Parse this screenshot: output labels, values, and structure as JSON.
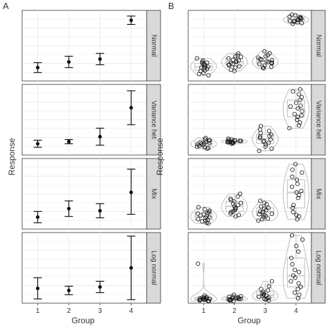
{
  "panel_labels": [
    "A",
    "B"
  ],
  "y_label": "Response",
  "x_label": "Group",
  "x_ticks": [
    "1",
    "2",
    "3",
    "4"
  ],
  "facets": [
    "Normal",
    "Variance het",
    "Mix",
    "Log normal"
  ],
  "colors": {
    "strip_bg": "#d9d9d9",
    "strip_border": "#333333",
    "grid": "#ebebeb",
    "point": "#111111",
    "box": "#bdbdbd"
  },
  "chart_data": [
    {
      "type": "errorbar",
      "panel": "A",
      "facets": [
        {
          "name": "Normal",
          "ylim": [
            0,
            10
          ],
          "mean": [
            1.9,
            2.7,
            3.1,
            8.6
          ],
          "lower": [
            1.2,
            1.9,
            2.3,
            8.0
          ],
          "upper": [
            2.6,
            3.5,
            3.9,
            9.2
          ]
        },
        {
          "name": "Variance het",
          "ylim": [
            0,
            10
          ],
          "mean": [
            1.6,
            1.9,
            2.6,
            6.7
          ],
          "lower": [
            1.1,
            1.6,
            1.4,
            4.3
          ],
          "upper": [
            2.1,
            2.2,
            3.8,
            9.1
          ]
        },
        {
          "name": "Mix",
          "ylim": [
            0,
            10
          ],
          "mean": [
            1.7,
            2.9,
            2.6,
            5.2
          ],
          "lower": [
            0.9,
            1.8,
            1.6,
            2.1
          ],
          "upper": [
            2.5,
            4.0,
            3.6,
            8.5
          ]
        },
        {
          "name": "Log normal",
          "ylim": [
            0,
            10
          ],
          "mean": [
            2.1,
            1.8,
            2.3,
            5.0
          ],
          "lower": [
            0.6,
            1.2,
            1.5,
            0.5
          ],
          "upper": [
            3.6,
            2.4,
            3.1,
            9.5
          ]
        }
      ]
    },
    {
      "type": "violin-box-jitter",
      "panel": "B",
      "facets": [
        {
          "name": "Normal",
          "ylim": [
            0,
            10
          ],
          "points": [
            [
              1.0,
              1.7,
              2.3,
              2.9,
              1.4,
              2.0,
              2.6,
              1.1,
              1.8,
              2.4,
              3.2,
              1.5,
              2.1,
              2.7,
              0.8,
              1.9,
              2.5
            ],
            [
              1.9,
              2.4,
              3.0,
              3.5,
              2.2,
              2.8,
              3.4,
              1.6,
              2.6,
              3.9,
              2.1,
              2.7,
              3.2,
              1.4,
              2.9,
              3.6,
              2.3
            ],
            [
              2.0,
              2.6,
              3.1,
              3.7,
              2.4,
              2.9,
              3.5,
              1.8,
              2.8,
              4.2,
              2.2,
              3.3,
              2.7,
              1.9,
              3.0,
              3.9,
              2.5
            ],
            [
              8.3,
              8.7,
              9.0,
              8.5,
              8.9,
              9.3,
              8.1,
              8.6,
              9.1,
              8.4,
              8.8,
              9.4,
              8.2,
              8.7,
              9.0,
              8.5
            ]
          ]
        },
        {
          "name": "Variance het",
          "ylim": [
            0,
            10
          ],
          "points": [
            [
              1.0,
              1.4,
              1.8,
              2.2,
              1.2,
              1.6,
              2.0,
              1.3,
              1.7,
              2.4,
              0.9,
              1.5,
              1.9,
              2.1,
              1.1,
              1.6
            ],
            [
              1.6,
              1.9,
              2.1,
              1.8,
              2.0,
              1.7,
              2.2,
              1.9,
              1.8,
              2.0,
              2.1,
              1.7,
              1.9,
              2.3,
              1.8,
              2.0
            ],
            [
              0.6,
              1.2,
              1.9,
              2.6,
              3.4,
              4.1,
              1.5,
              2.2,
              2.9,
              3.6,
              0.9,
              1.7,
              2.4,
              3.1,
              2.0,
              2.7
            ],
            [
              3.8,
              4.6,
              5.4,
              6.2,
              7.0,
              7.8,
              8.6,
              9.3,
              5.0,
              5.8,
              6.6,
              7.4,
              8.2,
              4.2,
              6.9,
              9.0,
              5.6
            ]
          ]
        },
        {
          "name": "Mix",
          "ylim": [
            0,
            10
          ],
          "points": [
            [
              0.8,
              1.3,
              1.8,
              2.3,
              2.8,
              1.1,
              1.6,
              2.1,
              2.6,
              0.9,
              1.4,
              1.9,
              2.4,
              1.2,
              1.7,
              2.2,
              3.1
            ],
            [
              1.8,
              2.5,
              3.2,
              3.9,
              4.6,
              2.2,
              2.9,
              3.6,
              4.3,
              2.0,
              2.7,
              3.4,
              4.1,
              2.4,
              3.0,
              3.7,
              5.0
            ],
            [
              1.2,
              1.7,
              2.2,
              2.7,
              3.2,
              3.7,
              1.5,
              2.0,
              2.5,
              3.0,
              3.5,
              1.4,
              1.9,
              2.4,
              2.9,
              4.0,
              2.1
            ],
            [
              1.4,
              2.4,
              3.4,
              4.4,
              5.4,
              6.4,
              7.4,
              8.4,
              9.2,
              2.0,
              3.0,
              4.8,
              6.0,
              7.0,
              8.0,
              1.8,
              5.2
            ]
          ]
        },
        {
          "name": "Log normal",
          "ylim": [
            0,
            10
          ],
          "points": [
            [
              0.3,
              0.5,
              0.7,
              0.4,
              0.6,
              0.8,
              0.5,
              0.9,
              0.4,
              1.1,
              0.6,
              0.7,
              0.5,
              0.8,
              0.3,
              0.6,
              5.6
            ],
            [
              0.3,
              0.5,
              0.7,
              0.9,
              0.4,
              0.6,
              0.8,
              1.0,
              0.5,
              0.7,
              1.2,
              0.4,
              0.6,
              0.8,
              0.5,
              0.9
            ],
            [
              0.4,
              0.8,
              1.2,
              1.6,
              2.0,
              0.6,
              1.0,
              1.4,
              1.8,
              2.4,
              0.5,
              0.9,
              1.3,
              3.1,
              1.1,
              0.7
            ],
            [
              0.7,
              1.5,
              2.3,
              3.1,
              3.9,
              4.7,
              5.5,
              6.4,
              7.3,
              8.1,
              9.0,
              9.6,
              1.2,
              2.0,
              2.8,
              3.6,
              4.4
            ]
          ]
        }
      ]
    }
  ]
}
